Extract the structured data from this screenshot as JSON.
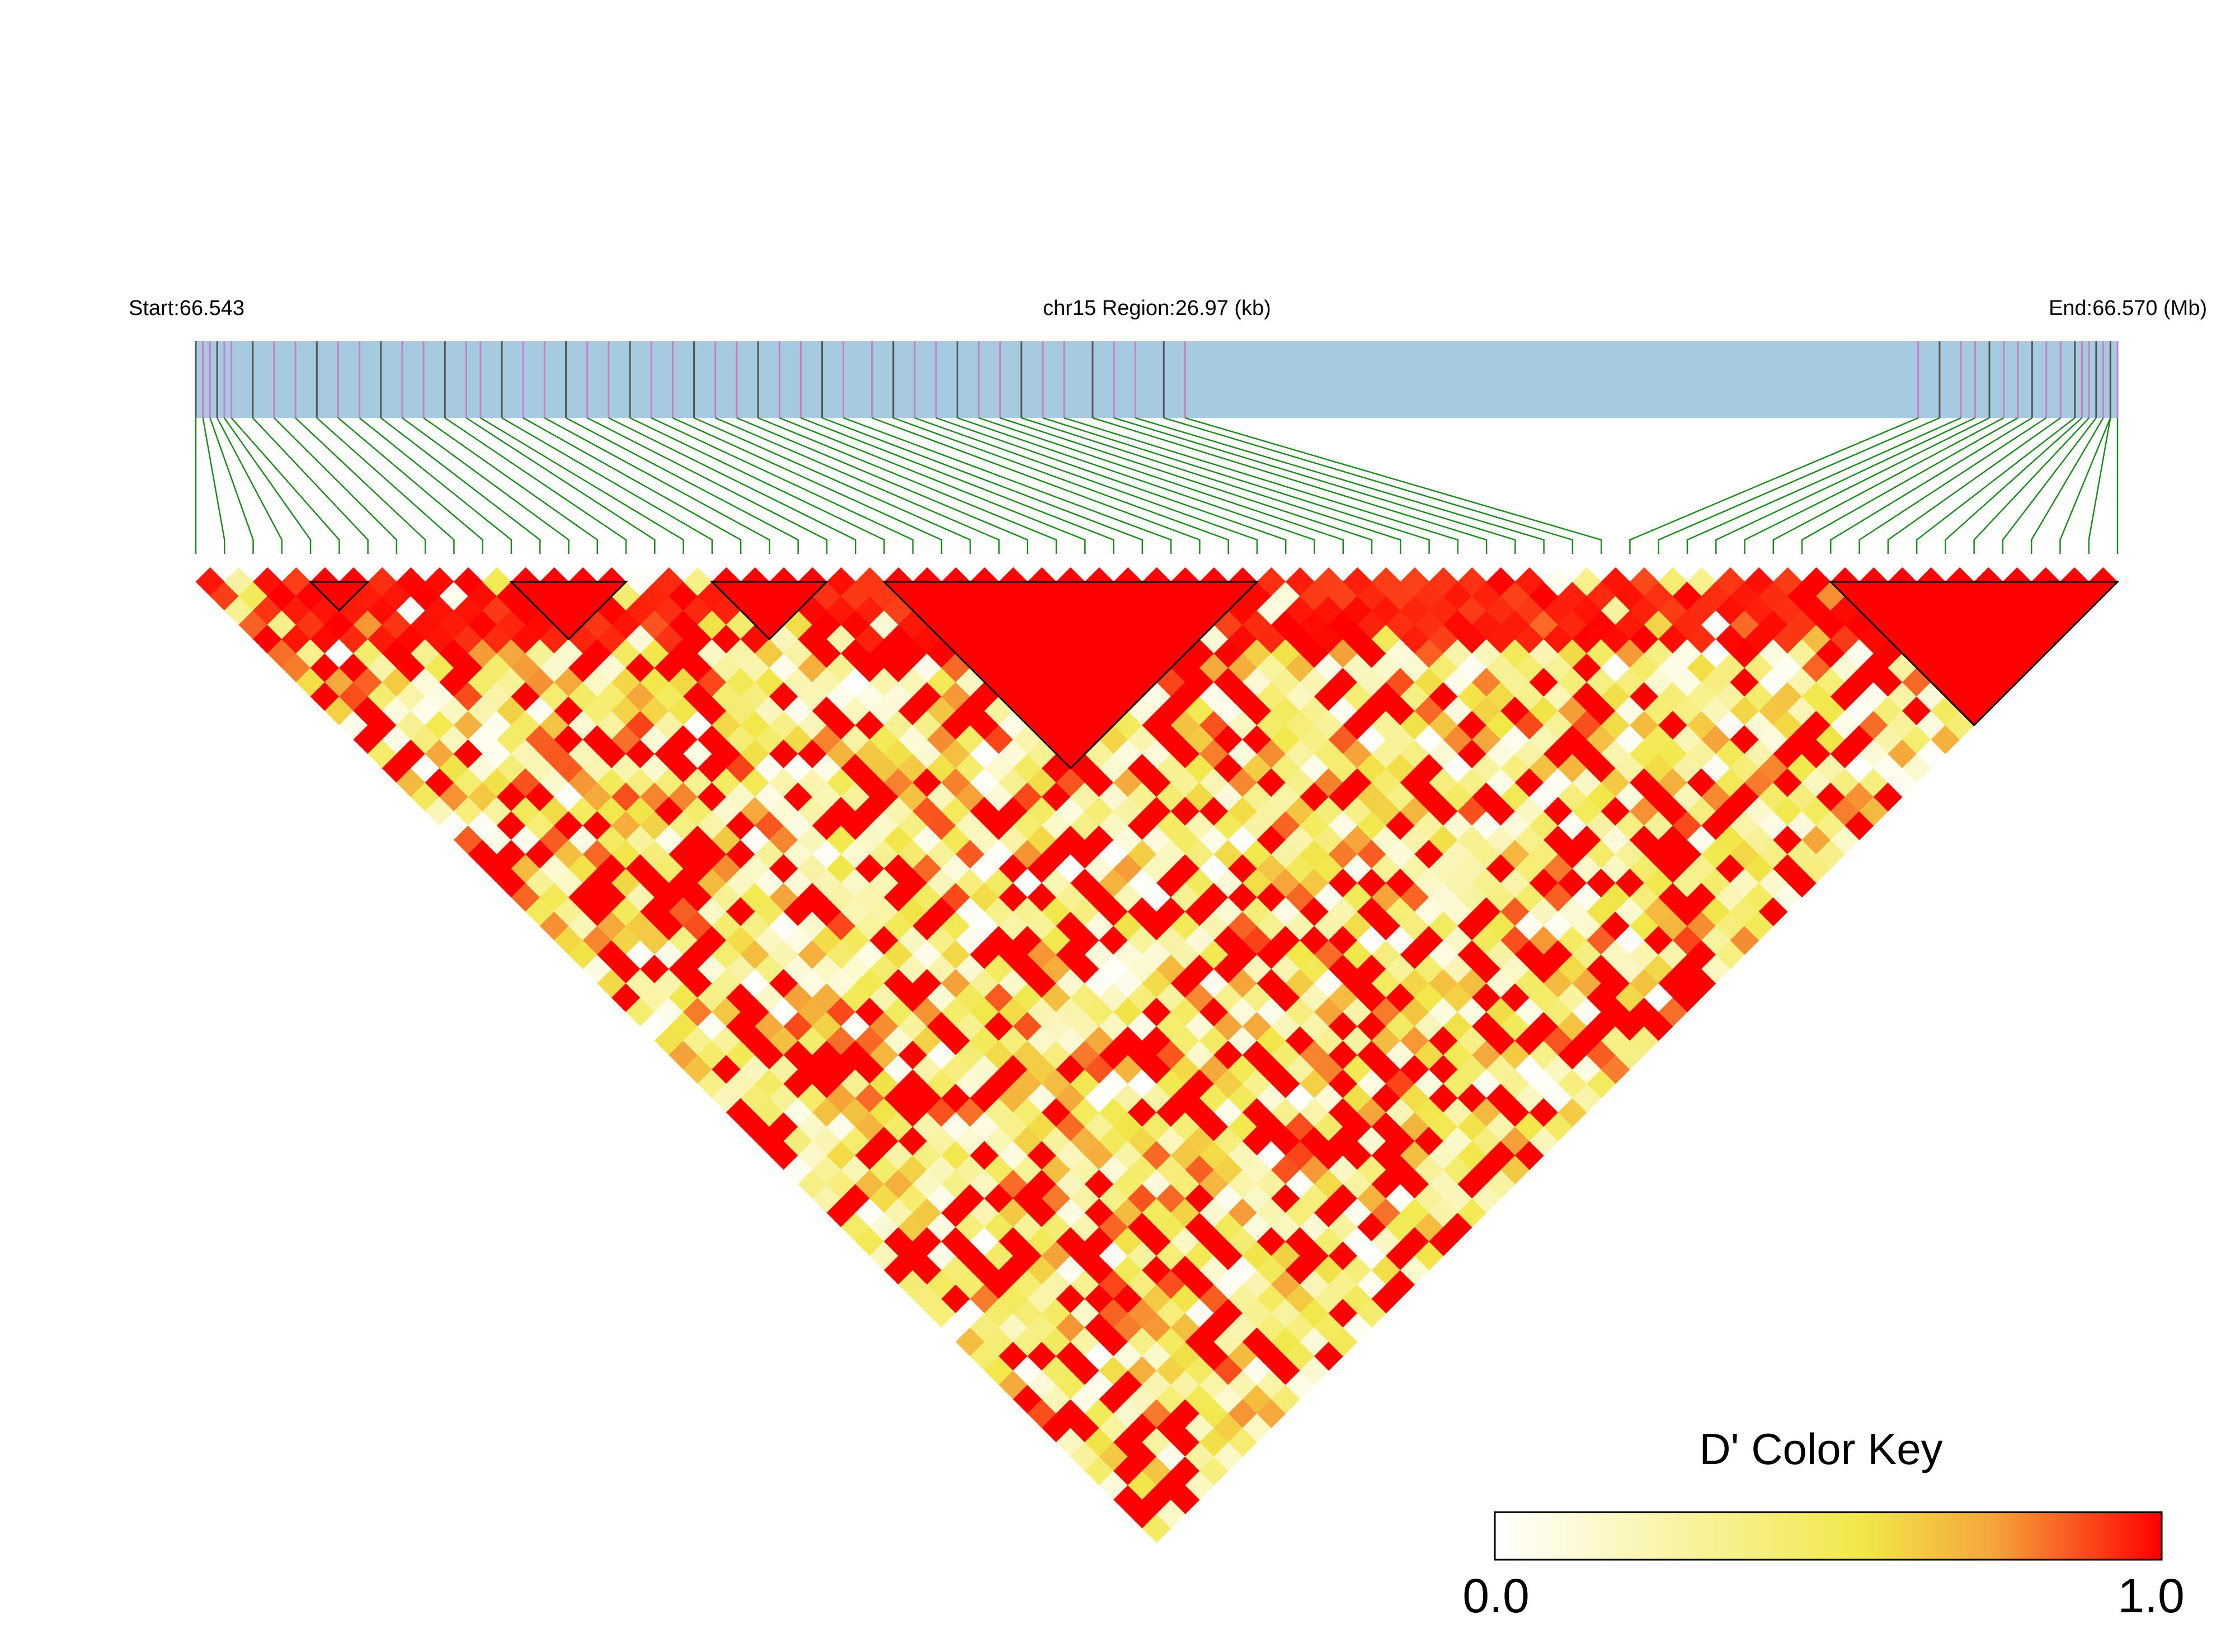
{
  "labels": {
    "start": "Start:66.543",
    "region": "chr15 Region:26.97 (kb)",
    "end": "End:66.570 (Mb)"
  },
  "colors": {
    "track": "#a6cbe0",
    "connector": "#1e8a1e",
    "block_outline": "#000000",
    "key_stops": [
      "#ffffff",
      "#f2e84a",
      "#f5a43a",
      "#ff0000"
    ]
  },
  "chart_data": {
    "type": "heatmap",
    "chromosome": "chr15",
    "region_start_mb": 66.543,
    "region_end_mb": 66.57,
    "region_kb": 26.97,
    "n_snps": 68,
    "snp_positions_mb": [
      66.543,
      66.5431,
      66.5432,
      66.5433,
      66.5434,
      66.5435,
      66.5438,
      66.5441,
      66.5444,
      66.5447,
      66.545,
      66.5453,
      66.5456,
      66.5459,
      66.5462,
      66.5465,
      66.5468,
      66.547,
      66.5473,
      66.5476,
      66.5479,
      66.5482,
      66.5485,
      66.5488,
      66.5491,
      66.5494,
      66.5497,
      66.55,
      66.5503,
      66.5506,
      66.5509,
      66.5512,
      66.5515,
      66.5518,
      66.5521,
      66.5525,
      66.5528,
      66.5531,
      66.5534,
      66.5537,
      66.554,
      66.5543,
      66.5546,
      66.5549,
      66.5552,
      66.5556,
      66.5559,
      66.5562,
      66.5566,
      66.5569,
      66.5672,
      66.5675,
      66.5678,
      66.568,
      66.5682,
      66.5684,
      66.5686,
      66.5688,
      66.569,
      66.5692,
      66.5694,
      66.5695,
      66.5696,
      66.5697,
      66.5698,
      66.5699,
      66.5699,
      66.57
    ],
    "ld_blocks": [
      [
        4,
        6
      ],
      [
        11,
        15
      ],
      [
        18,
        22
      ],
      [
        24,
        37
      ],
      [
        57,
        67
      ]
    ],
    "dprime_seed": 7919,
    "color_key": {
      "title": "D' Color Key",
      "min_label": "0.0",
      "max_label": "1.0",
      "range": [
        0,
        1
      ]
    }
  }
}
